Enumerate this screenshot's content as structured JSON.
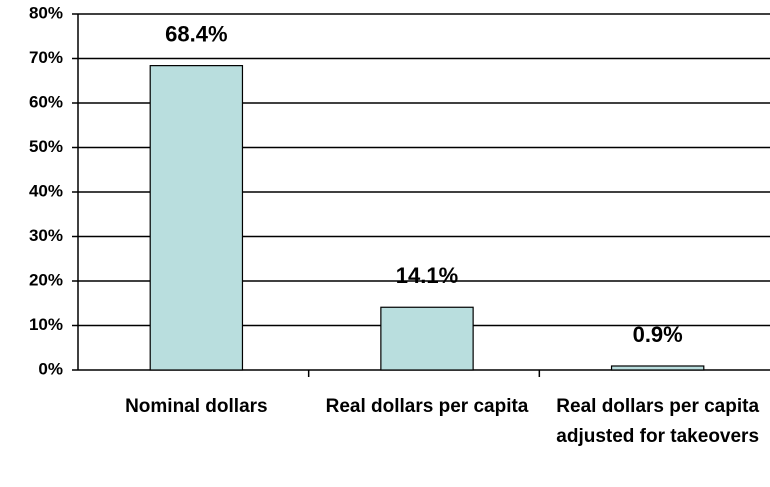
{
  "chart_data": {
    "type": "bar",
    "categories": [
      "Nominal dollars",
      "Real dollars per capita",
      "Real dollars per capita adjusted for takeovers"
    ],
    "values": [
      68.4,
      14.1,
      0.9
    ],
    "value_labels": [
      "68.4%",
      "14.1%",
      "0.9%"
    ],
    "color": "#b9dede",
    "ylim": [
      0,
      80
    ],
    "yticks": [
      {
        "value": 0,
        "label": "0%"
      },
      {
        "value": 10,
        "label": "10%"
      },
      {
        "value": 20,
        "label": "20%"
      },
      {
        "value": 30,
        "label": "30%"
      },
      {
        "value": 40,
        "label": "40%"
      },
      {
        "value": 50,
        "label": "50%"
      },
      {
        "value": 60,
        "label": "60%"
      },
      {
        "value": 70,
        "label": "70%"
      },
      {
        "value": 80,
        "label": "80%"
      }
    ],
    "grid": true
  }
}
